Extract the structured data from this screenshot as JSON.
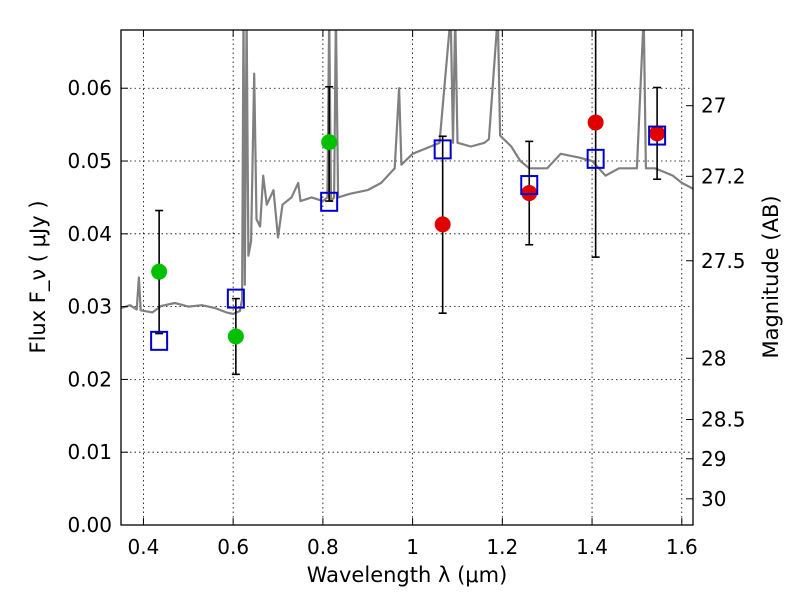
{
  "chart_data": {
    "type": "scatter",
    "xlabel": "Wavelength  λ (μm)",
    "ylabel": "Flux  F_ν  ( μJy )",
    "y2label": "Magnitude (AB)",
    "xlim": [
      0.35,
      1.625
    ],
    "ylim": [
      0.0,
      0.068
    ],
    "grid": true,
    "x_ticks": [
      {
        "value": 0.4,
        "label": "0.4"
      },
      {
        "value": 0.6,
        "label": "0.6"
      },
      {
        "value": 0.8,
        "label": "0.8"
      },
      {
        "value": 1.0,
        "label": "1"
      },
      {
        "value": 1.2,
        "label": "1.2"
      },
      {
        "value": 1.4,
        "label": "1.4"
      },
      {
        "value": 1.6,
        "label": "1.6"
      }
    ],
    "y_ticks": [
      {
        "value": 0.0,
        "label": "0.00"
      },
      {
        "value": 0.01,
        "label": "0.01"
      },
      {
        "value": 0.02,
        "label": "0.02"
      },
      {
        "value": 0.03,
        "label": "0.03"
      },
      {
        "value": 0.04,
        "label": "0.04"
      },
      {
        "value": 0.05,
        "label": "0.05"
      },
      {
        "value": 0.06,
        "label": "0.06"
      }
    ],
    "y2_ticks": [
      {
        "label": "27",
        "flux": 0.0576
      },
      {
        "label": "27.2",
        "flux": 0.0479
      },
      {
        "label": "27.5",
        "flux": 0.0363
      },
      {
        "label": "28",
        "flux": 0.0229
      },
      {
        "label": "28.5",
        "flux": 0.0145
      },
      {
        "label": "29",
        "flux": 0.0091
      },
      {
        "label": "30",
        "flux": 0.0036
      }
    ],
    "colors": {
      "green": "#00c000",
      "red": "#e00000",
      "square": "#0000cc",
      "spectrum": "#808080",
      "errorbar": "#000000"
    },
    "series": [
      {
        "marker": "circle",
        "color": "green",
        "points": [
          {
            "x": 0.435,
            "y": 0.0348,
            "err_lo": 0.0263,
            "err_hi": 0.0432
          },
          {
            "x": 0.606,
            "y": 0.0259,
            "err_lo": 0.0207,
            "err_hi": 0.0311
          },
          {
            "x": 0.814,
            "y": 0.0526,
            "err_lo": 0.0445,
            "err_hi": 0.0602
          }
        ]
      },
      {
        "marker": "circle",
        "color": "red",
        "points": [
          {
            "x": 1.067,
            "y": 0.0413,
            "err_lo": 0.0291,
            "err_hi": 0.0534
          },
          {
            "x": 1.26,
            "y": 0.0456,
            "err_lo": 0.0385,
            "err_hi": 0.0527
          },
          {
            "x": 1.408,
            "y": 0.0553,
            "err_lo": 0.0368,
            "err_hi": 0.07
          },
          {
            "x": 1.545,
            "y": 0.0538,
            "err_lo": 0.0475,
            "err_hi": 0.0601
          }
        ]
      },
      {
        "marker": "open-square",
        "color": "square",
        "points": [
          {
            "x": 0.435,
            "y": 0.0253
          },
          {
            "x": 0.606,
            "y": 0.0311
          },
          {
            "x": 0.814,
            "y": 0.0444
          },
          {
            "x": 1.067,
            "y": 0.0516
          },
          {
            "x": 1.26,
            "y": 0.0467
          },
          {
            "x": 1.408,
            "y": 0.0503
          },
          {
            "x": 1.545,
            "y": 0.0535
          }
        ]
      },
      {
        "marker": "line",
        "color": "spectrum",
        "points": [
          {
            "x": 0.35,
            "y": 0.0298
          },
          {
            "x": 0.37,
            "y": 0.0302
          },
          {
            "x": 0.385,
            "y": 0.0296
          },
          {
            "x": 0.39,
            "y": 0.034
          },
          {
            "x": 0.394,
            "y": 0.0295
          },
          {
            "x": 0.42,
            "y": 0.0292
          },
          {
            "x": 0.44,
            "y": 0.0301
          },
          {
            "x": 0.47,
            "y": 0.0305
          },
          {
            "x": 0.5,
            "y": 0.03
          },
          {
            "x": 0.53,
            "y": 0.0302
          },
          {
            "x": 0.56,
            "y": 0.0298
          },
          {
            "x": 0.585,
            "y": 0.0292
          },
          {
            "x": 0.6,
            "y": 0.029
          },
          {
            "x": 0.615,
            "y": 0.0294
          },
          {
            "x": 0.62,
            "y": 0.031
          },
          {
            "x": 0.623,
            "y": 0.07
          },
          {
            "x": 0.626,
            "y": 0.033
          },
          {
            "x": 0.63,
            "y": 0.07
          },
          {
            "x": 0.634,
            "y": 0.037
          },
          {
            "x": 0.64,
            "y": 0.039
          },
          {
            "x": 0.647,
            "y": 0.062
          },
          {
            "x": 0.652,
            "y": 0.042
          },
          {
            "x": 0.66,
            "y": 0.041
          },
          {
            "x": 0.667,
            "y": 0.048
          },
          {
            "x": 0.675,
            "y": 0.044
          },
          {
            "x": 0.69,
            "y": 0.046
          },
          {
            "x": 0.7,
            "y": 0.0395
          },
          {
            "x": 0.71,
            "y": 0.044
          },
          {
            "x": 0.73,
            "y": 0.045
          },
          {
            "x": 0.745,
            "y": 0.047
          },
          {
            "x": 0.75,
            "y": 0.0445
          },
          {
            "x": 0.775,
            "y": 0.045
          },
          {
            "x": 0.8,
            "y": 0.0445
          },
          {
            "x": 0.81,
            "y": 0.045
          },
          {
            "x": 0.814,
            "y": 0.07
          },
          {
            "x": 0.818,
            "y": 0.0445
          },
          {
            "x": 0.825,
            "y": 0.045
          },
          {
            "x": 0.829,
            "y": 0.07
          },
          {
            "x": 0.834,
            "y": 0.045
          },
          {
            "x": 0.86,
            "y": 0.0455
          },
          {
            "x": 0.9,
            "y": 0.046
          },
          {
            "x": 0.93,
            "y": 0.047
          },
          {
            "x": 0.96,
            "y": 0.049
          },
          {
            "x": 0.97,
            "y": 0.06
          },
          {
            "x": 0.975,
            "y": 0.0495
          },
          {
            "x": 1.0,
            "y": 0.051
          },
          {
            "x": 1.04,
            "y": 0.052
          },
          {
            "x": 1.06,
            "y": 0.0525
          },
          {
            "x": 1.085,
            "y": 0.07
          },
          {
            "x": 1.09,
            "y": 0.0525
          },
          {
            "x": 1.095,
            "y": 0.07
          },
          {
            "x": 1.1,
            "y": 0.0525
          },
          {
            "x": 1.13,
            "y": 0.052
          },
          {
            "x": 1.16,
            "y": 0.0525
          },
          {
            "x": 1.17,
            "y": 0.053
          },
          {
            "x": 1.19,
            "y": 0.07
          },
          {
            "x": 1.195,
            "y": 0.0535
          },
          {
            "x": 1.22,
            "y": 0.052
          },
          {
            "x": 1.24,
            "y": 0.05
          },
          {
            "x": 1.26,
            "y": 0.049
          },
          {
            "x": 1.3,
            "y": 0.049
          },
          {
            "x": 1.33,
            "y": 0.051
          },
          {
            "x": 1.37,
            "y": 0.0505
          },
          {
            "x": 1.4,
            "y": 0.05
          },
          {
            "x": 1.43,
            "y": 0.048
          },
          {
            "x": 1.46,
            "y": 0.049
          },
          {
            "x": 1.5,
            "y": 0.049
          },
          {
            "x": 1.515,
            "y": 0.07
          },
          {
            "x": 1.52,
            "y": 0.049
          },
          {
            "x": 1.54,
            "y": 0.049
          },
          {
            "x": 1.56,
            "y": 0.0485
          },
          {
            "x": 1.58,
            "y": 0.048
          },
          {
            "x": 1.6,
            "y": 0.047
          },
          {
            "x": 1.625,
            "y": 0.0462
          }
        ]
      }
    ]
  }
}
